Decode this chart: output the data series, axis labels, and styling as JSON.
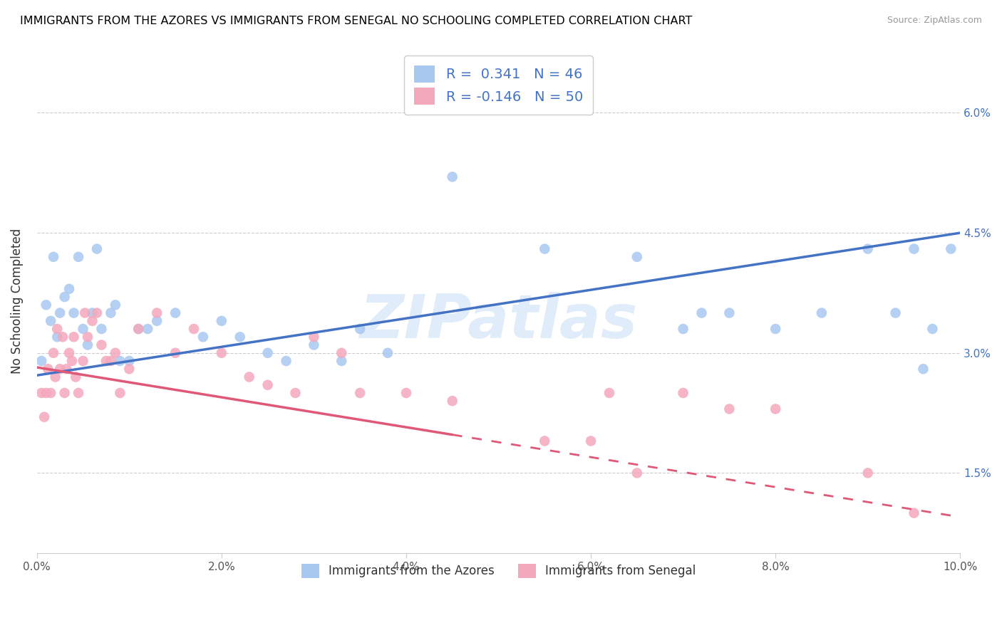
{
  "title": "IMMIGRANTS FROM THE AZORES VS IMMIGRANTS FROM SENEGAL NO SCHOOLING COMPLETED CORRELATION CHART",
  "source": "Source: ZipAtlas.com",
  "ylabel": "No Schooling Completed",
  "xlim": [
    0.0,
    10.0
  ],
  "ylim": [
    0.5,
    6.8
  ],
  "xtick_vals": [
    0.0,
    2.0,
    4.0,
    6.0,
    8.0,
    10.0
  ],
  "xtick_labels": [
    "0.0%",
    "2.0%",
    "4.0%",
    "6.0%",
    "8.0%",
    "10.0%"
  ],
  "yticks": [
    1.5,
    3.0,
    4.5,
    6.0
  ],
  "ytick_labels": [
    "1.5%",
    "3.0%",
    "4.5%",
    "6.0%"
  ],
  "legend_labels": [
    "Immigrants from the Azores",
    "Immigrants from Senegal"
  ],
  "R_azores": 0.341,
  "N_azores": 46,
  "R_senegal": -0.146,
  "N_senegal": 50,
  "color_azores": "#A8C8F0",
  "color_senegal": "#F4A8BC",
  "line_color_azores": "#4472C4",
  "line_color_senegal": "#E05878",
  "watermark": "ZIPatlas",
  "azores_x": [
    0.05,
    0.1,
    0.15,
    0.18,
    0.22,
    0.25,
    0.3,
    0.35,
    0.4,
    0.45,
    0.5,
    0.55,
    0.6,
    0.65,
    0.7,
    0.8,
    0.85,
    0.9,
    1.0,
    1.1,
    1.2,
    1.3,
    1.5,
    1.8,
    2.0,
    2.2,
    2.5,
    2.7,
    3.0,
    3.3,
    3.5,
    3.8,
    4.5,
    5.5,
    6.5,
    7.0,
    7.2,
    7.5,
    8.0,
    8.5,
    9.0,
    9.3,
    9.5,
    9.6,
    9.7,
    9.9
  ],
  "azores_y": [
    2.9,
    3.6,
    3.4,
    4.2,
    3.2,
    3.5,
    3.7,
    3.8,
    3.5,
    4.2,
    3.3,
    3.1,
    3.5,
    4.3,
    3.3,
    3.5,
    3.6,
    2.9,
    2.9,
    3.3,
    3.3,
    3.4,
    3.5,
    3.2,
    3.4,
    3.2,
    3.0,
    2.9,
    3.1,
    2.9,
    3.3,
    3.0,
    5.2,
    4.3,
    4.2,
    3.3,
    3.5,
    3.5,
    3.3,
    3.5,
    4.3,
    3.5,
    4.3,
    2.8,
    3.3,
    4.3
  ],
  "senegal_x": [
    0.05,
    0.08,
    0.1,
    0.12,
    0.15,
    0.18,
    0.2,
    0.22,
    0.25,
    0.28,
    0.3,
    0.32,
    0.35,
    0.38,
    0.4,
    0.42,
    0.45,
    0.5,
    0.52,
    0.55,
    0.6,
    0.65,
    0.7,
    0.75,
    0.8,
    0.85,
    0.9,
    1.0,
    1.1,
    1.3,
    1.5,
    1.7,
    2.0,
    2.3,
    2.5,
    2.8,
    3.0,
    3.3,
    3.5,
    4.0,
    4.5,
    5.5,
    6.0,
    6.2,
    6.5,
    7.0,
    7.5,
    8.0,
    9.0,
    9.5
  ],
  "senegal_y": [
    2.5,
    2.2,
    2.5,
    2.8,
    2.5,
    3.0,
    2.7,
    3.3,
    2.8,
    3.2,
    2.5,
    2.8,
    3.0,
    2.9,
    3.2,
    2.7,
    2.5,
    2.9,
    3.5,
    3.2,
    3.4,
    3.5,
    3.1,
    2.9,
    2.9,
    3.0,
    2.5,
    2.8,
    3.3,
    3.5,
    3.0,
    3.3,
    3.0,
    2.7,
    2.6,
    2.5,
    3.2,
    3.0,
    2.5,
    2.5,
    2.4,
    1.9,
    1.9,
    2.5,
    1.5,
    2.5,
    2.3,
    2.3,
    1.5,
    1.0
  ],
  "senegal_solid_max_x": 4.5,
  "blue_line_y0": 2.72,
  "blue_line_y1": 4.5,
  "pink_line_y0": 2.82,
  "pink_line_y1": 0.95
}
